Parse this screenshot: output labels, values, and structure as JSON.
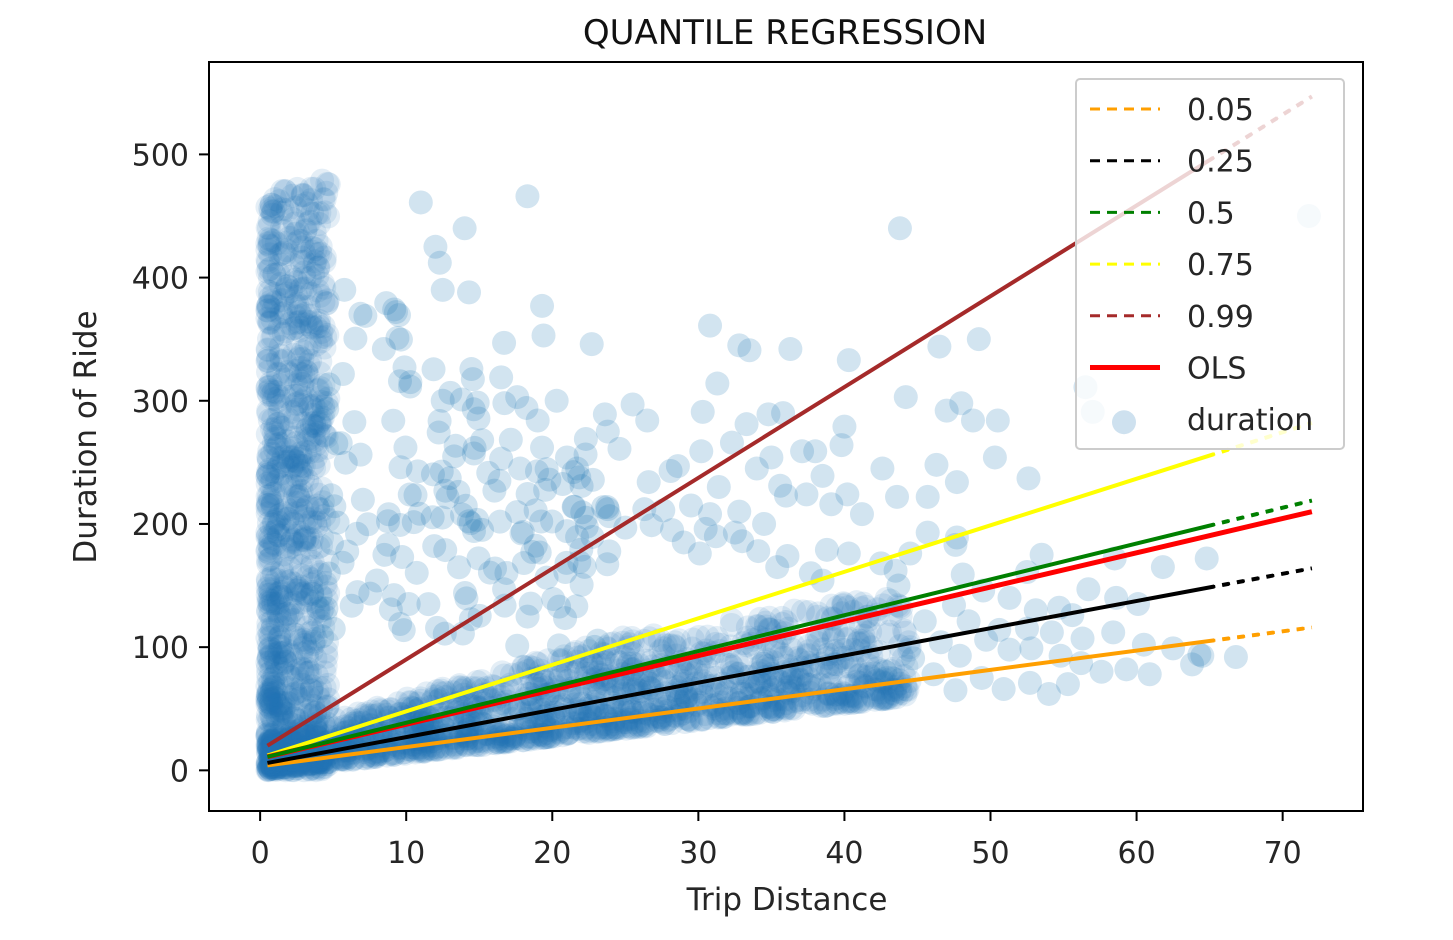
{
  "chart_data": {
    "type": "scatter",
    "title": "QUANTILE REGRESSION",
    "xlabel": "Trip Distance",
    "ylabel": "Duration of Ride",
    "xlim": [
      -3.5,
      75.5
    ],
    "ylim": [
      -33,
      575
    ],
    "x_ticks": [
      0,
      10,
      20,
      30,
      40,
      50,
      60,
      70
    ],
    "y_ticks": [
      0,
      100,
      200,
      300,
      400,
      500
    ],
    "grid": false,
    "legend_position": "upper right",
    "scatter_series": {
      "name": "duration",
      "color": "#1f77b4",
      "alpha": 0.2,
      "points": [
        [
          18.3,
          466
        ],
        [
          11,
          461
        ],
        [
          14,
          440
        ],
        [
          43.8,
          440
        ],
        [
          71.8,
          450
        ],
        [
          12,
          425
        ],
        [
          9.3,
          372
        ],
        [
          12.3,
          412
        ],
        [
          9.4,
          351
        ],
        [
          14.3,
          388
        ],
        [
          12.5,
          390
        ],
        [
          16.5,
          319
        ],
        [
          16.7,
          347
        ],
        [
          19.3,
          377
        ],
        [
          19.4,
          353
        ],
        [
          22.7,
          346
        ],
        [
          30.8,
          361
        ],
        [
          32.8,
          345
        ],
        [
          33.5,
          341
        ],
        [
          36.3,
          342
        ],
        [
          40.3,
          333
        ],
        [
          46.5,
          344
        ],
        [
          49.2,
          350
        ],
        [
          31.3,
          314
        ],
        [
          12.5,
          300
        ],
        [
          13.8,
          301
        ],
        [
          17.6,
          303
        ],
        [
          15.2,
          268
        ],
        [
          19,
          284
        ],
        [
          20.3,
          300
        ],
        [
          23.6,
          289
        ],
        [
          25.5,
          297
        ],
        [
          26.5,
          284
        ],
        [
          22.3,
          269
        ],
        [
          23.8,
          275
        ],
        [
          24.6,
          261
        ],
        [
          30.3,
          291
        ],
        [
          34.8,
          289
        ],
        [
          35.8,
          290
        ],
        [
          32.3,
          266
        ],
        [
          33.3,
          281
        ],
        [
          38,
          259
        ],
        [
          40,
          279
        ],
        [
          44.2,
          303
        ],
        [
          47,
          292
        ],
        [
          48,
          298
        ],
        [
          48.8,
          284
        ],
        [
          50.5,
          284
        ],
        [
          56.5,
          311
        ],
        [
          57,
          291
        ],
        [
          28.1,
          243
        ],
        [
          30.2,
          259
        ],
        [
          34,
          245
        ],
        [
          35,
          254
        ],
        [
          37.1,
          259
        ],
        [
          39.8,
          264
        ],
        [
          42.6,
          245
        ],
        [
          46.3,
          248
        ],
        [
          47.7,
          234
        ],
        [
          50.3,
          254
        ],
        [
          52.6,
          237
        ],
        [
          19.3,
          262
        ],
        [
          19.8,
          236
        ],
        [
          21.7,
          245
        ],
        [
          17.8,
          245
        ],
        [
          16.5,
          253
        ],
        [
          26.6,
          234
        ],
        [
          28.6,
          247
        ],
        [
          29.5,
          215
        ],
        [
          30.8,
          208
        ],
        [
          31.4,
          230
        ],
        [
          32.8,
          210
        ],
        [
          35.6,
          231
        ],
        [
          36,
          223
        ],
        [
          37.4,
          224
        ],
        [
          38.5,
          239
        ],
        [
          39.1,
          216
        ],
        [
          40.2,
          224
        ],
        [
          41.2,
          208
        ],
        [
          43.6,
          222
        ],
        [
          45.7,
          222
        ],
        [
          47.7,
          189
        ],
        [
          21.5,
          214
        ],
        [
          22.3,
          205
        ],
        [
          23.8,
          212
        ],
        [
          26.8,
          199
        ],
        [
          28.2,
          195
        ],
        [
          30.1,
          176
        ],
        [
          31.2,
          190
        ],
        [
          33,
          186
        ],
        [
          34.1,
          178
        ],
        [
          35.4,
          165
        ],
        [
          36.1,
          174
        ],
        [
          37.7,
          160
        ],
        [
          38.8,
          179
        ],
        [
          40.3,
          176
        ],
        [
          42.5,
          168
        ],
        [
          43.5,
          162
        ],
        [
          44.5,
          176
        ],
        [
          45.7,
          193
        ],
        [
          47.6,
          183
        ],
        [
          53.5,
          175
        ],
        [
          58.5,
          172
        ],
        [
          61.8,
          165
        ],
        [
          64.8,
          172
        ],
        [
          52.5,
          161
        ],
        [
          48.1,
          159
        ],
        [
          49.5,
          146
        ],
        [
          51.3,
          140
        ],
        [
          53.1,
          130
        ],
        [
          54.7,
          132
        ],
        [
          56.7,
          147
        ],
        [
          58.6,
          140
        ],
        [
          60.1,
          135
        ],
        [
          43.7,
          150
        ],
        [
          38.5,
          154
        ],
        [
          45.5,
          121
        ],
        [
          47.5,
          134
        ],
        [
          48.5,
          121
        ],
        [
          50.6,
          114
        ],
        [
          52.5,
          115
        ],
        [
          54.2,
          112
        ],
        [
          56.3,
          107
        ],
        [
          58.4,
          112
        ],
        [
          60.5,
          102
        ],
        [
          62.5,
          99
        ],
        [
          64.3,
          94
        ],
        [
          66.8,
          92
        ],
        [
          55.6,
          126
        ],
        [
          46.6,
          104
        ],
        [
          47.9,
          93
        ],
        [
          49.7,
          106
        ],
        [
          51.3,
          98
        ],
        [
          52.8,
          99
        ],
        [
          54.8,
          93
        ],
        [
          56.2,
          87
        ],
        [
          57.6,
          80
        ],
        [
          59.3,
          82
        ],
        [
          60.9,
          78
        ],
        [
          63.8,
          86
        ],
        [
          64.5,
          93
        ],
        [
          44.7,
          91
        ],
        [
          46.1,
          78
        ],
        [
          47.6,
          65
        ],
        [
          49.4,
          75
        ],
        [
          50.9,
          66
        ],
        [
          52.7,
          71
        ],
        [
          54,
          62
        ],
        [
          55.3,
          70
        ],
        [
          42.8,
          80
        ],
        [
          27.6,
          211
        ],
        [
          25,
          197
        ],
        [
          26.3,
          212
        ],
        [
          32.5,
          193
        ],
        [
          34.5,
          200
        ],
        [
          30.5,
          196
        ],
        [
          29,
          185
        ]
      ]
    },
    "series": [
      {
        "name": "0.05",
        "color": "#ff9f00",
        "style": "dashed",
        "x": [
          0.5,
          72
        ],
        "y": [
          4,
          116
        ]
      },
      {
        "name": "0.25",
        "color": "#000000",
        "style": "dashed",
        "x": [
          0.5,
          72
        ],
        "y": [
          6,
          164
        ]
      },
      {
        "name": "0.5",
        "color": "#008000",
        "style": "dashed",
        "x": [
          0.5,
          72
        ],
        "y": [
          11,
          219
        ]
      },
      {
        "name": "0.75",
        "color": "#ffff00",
        "style": "dashed",
        "x": [
          0.5,
          72
        ],
        "y": [
          12,
          282
        ]
      },
      {
        "name": "0.99",
        "color": "#a52a2a",
        "style": "dashed",
        "x": [
          0.5,
          72
        ],
        "y": [
          20,
          547
        ]
      },
      {
        "name": "OLS",
        "color": "#ff0000",
        "style": "solid",
        "x": [
          0.5,
          72
        ],
        "y": [
          11,
          210
        ]
      }
    ],
    "legend": [
      "0.05",
      "0.25",
      "0.5",
      "0.75",
      "0.99",
      "OLS",
      "duration"
    ]
  }
}
